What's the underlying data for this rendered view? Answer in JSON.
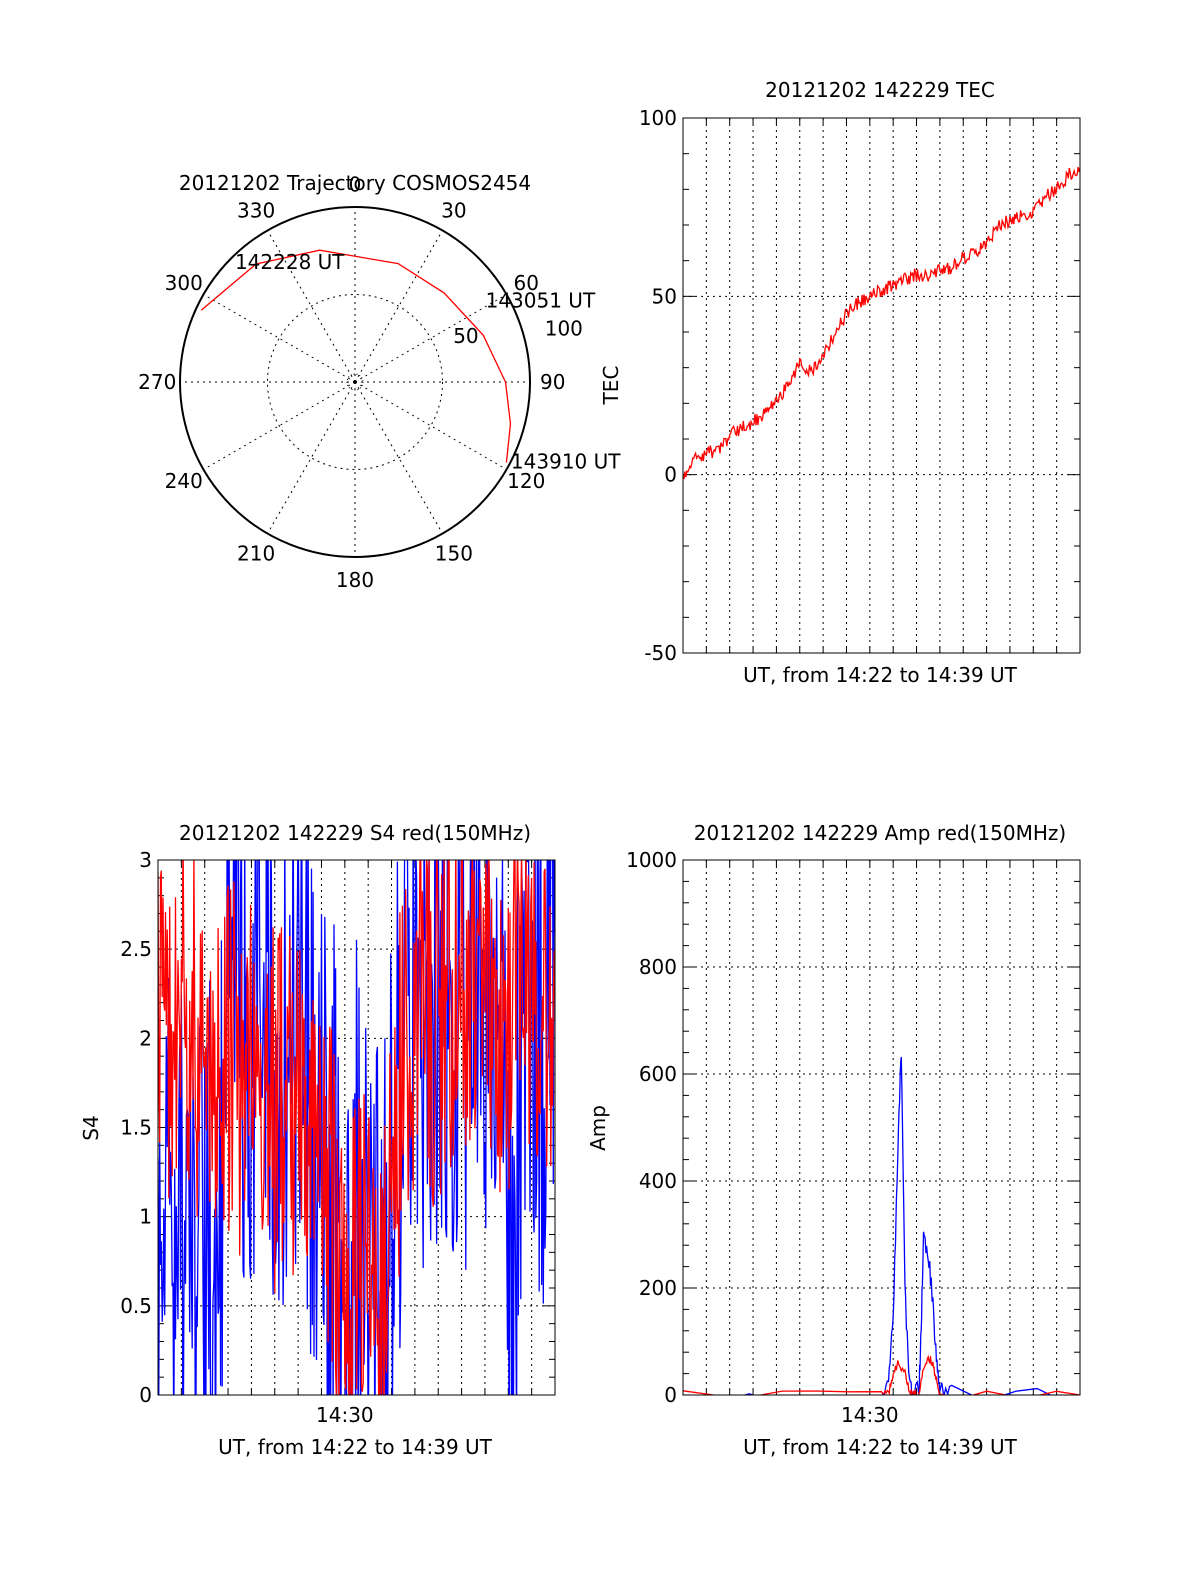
{
  "chart_data": [
    {
      "type": "polar",
      "title": "20121202 Trajectory COSMOS2454",
      "azimuth_ticks": [
        "0",
        "30",
        "60",
        "90",
        "120",
        "150",
        "180",
        "210",
        "240",
        "270",
        "300",
        "330"
      ],
      "radial_ticks": [
        "50",
        "100"
      ],
      "radial_max": 100,
      "grid": true,
      "series": [
        {
          "color": "#ff0000",
          "points": [
            {
              "az": 295,
              "el_r": 97
            },
            {
              "az": 320,
              "el_r": 88
            },
            {
              "az": 345,
              "el_r": 78
            },
            {
              "az": 20,
              "el_r": 72
            },
            {
              "az": 45,
              "el_r": 72
            },
            {
              "az": 70,
              "el_r": 78
            },
            {
              "az": 90,
              "el_r": 86
            },
            {
              "az": 105,
              "el_r": 92
            },
            {
              "az": 118,
              "el_r": 98
            }
          ]
        }
      ],
      "annotations": [
        {
          "text": "142228 UT",
          "az": 315,
          "el_r": 97
        },
        {
          "text": "143051 UT",
          "az": 58,
          "el_r": 88
        },
        {
          "text": "143910 UT",
          "az": 117,
          "el_r": 100
        }
      ]
    },
    {
      "type": "line",
      "title": "20121202 142229 TEC",
      "xlabel": "UT, from 14:22 to 14:39 UT",
      "ylabel": "TEC",
      "xlim": [
        0,
        17
      ],
      "ylim": [
        -50,
        100
      ],
      "y_ticks": [
        "-50",
        "0",
        "50",
        "100"
      ],
      "grid": true,
      "series": [
        {
          "color": "#ff0000",
          "x": [
            0,
            0.5,
            1,
            1.5,
            2,
            2.5,
            3,
            3.5,
            4,
            4.5,
            5,
            5.5,
            6,
            6.5,
            7,
            7.5,
            8,
            8.5,
            9,
            9.5,
            10,
            10.5,
            11,
            11.5,
            12,
            12.5,
            13,
            13.5,
            14,
            14.5,
            15,
            15.5,
            16,
            16.5,
            17
          ],
          "y": [
            0,
            4,
            6,
            7,
            11,
            13,
            15,
            17,
            20,
            26,
            31,
            29,
            34,
            39,
            45,
            48,
            50,
            52,
            53,
            55,
            56,
            56,
            57,
            58,
            61,
            62,
            65,
            70,
            71,
            73,
            74,
            78,
            80,
            84,
            86
          ]
        }
      ]
    },
    {
      "type": "line",
      "title": "20121202 142229 S4 red(150MHz)",
      "xlabel": "UT, from 14:22 to 14:39 UT",
      "ylabel": "S4",
      "xlim": [
        0,
        17
      ],
      "ylim": [
        0,
        3
      ],
      "x_tick_labels": [
        {
          "x": 8,
          "label": "14:30"
        }
      ],
      "y_ticks": [
        "0",
        "0.5",
        "1",
        "1.5",
        "2",
        "2.5",
        "3"
      ],
      "grid": true,
      "series": [
        {
          "color": "#0000ff",
          "x": [
            0,
            0.5,
            1,
            1.5,
            2,
            2.5,
            3,
            3.5,
            4,
            4.5,
            5,
            5.5,
            6,
            6.5,
            7,
            7.5,
            8,
            8.5,
            9,
            9.5,
            10,
            10.5,
            11,
            11.5,
            12,
            12.5,
            13,
            13.5,
            14,
            14.5,
            15,
            15.5,
            16,
            16.5,
            17
          ],
          "y": [
            1.3,
            0.8,
            0.75,
            0.85,
            0.8,
            1.0,
            2.2,
            2.3,
            2.0,
            2.6,
            2.0,
            1.7,
            2.2,
            1.6,
            1.4,
            1.3,
            0.15,
            1.0,
            1.1,
            0.12,
            1.2,
            2.1,
            2.2,
            2.3,
            2.0,
            2.4,
            2.3,
            2.2,
            2.5,
            2.4,
            0.4,
            1.8,
            2.4,
            2.1,
            2.6
          ]
        },
        {
          "color": "#ff0000",
          "x": [
            0,
            0.5,
            1,
            1.5,
            2,
            2.5,
            3,
            3.5,
            4,
            4.5,
            5,
            5.5,
            6,
            6.5,
            7,
            7.5,
            8,
            8.5,
            9,
            9.5,
            10,
            10.5,
            11,
            11.5,
            12,
            12.5,
            13,
            13.5,
            14,
            14.5,
            15,
            15.5,
            16,
            16.5,
            17
          ],
          "y": [
            1.9,
            2.1,
            2.3,
            2.0,
            2.1,
            2.0,
            1.9,
            1.8,
            1.9,
            1.7,
            1.6,
            1.7,
            1.5,
            1.5,
            1.4,
            1.0,
            0.2,
            1.0,
            1.1,
            0.15,
            1.2,
            1.9,
            2.2,
            2.1,
            2.0,
            2.2,
            2.3,
            2.1,
            2.2,
            2.2,
            2.0,
            2.1,
            2.4,
            2.3,
            2.1
          ]
        }
      ]
    },
    {
      "type": "line",
      "title": "20121202 142229 Amp red(150MHz)",
      "xlabel": "UT, from 14:22 to 14:39 UT",
      "ylabel": "Amp",
      "xlim": [
        0,
        17
      ],
      "ylim": [
        0,
        1000
      ],
      "x_tick_labels": [
        {
          "x": 8,
          "label": "14:30"
        }
      ],
      "y_ticks": [
        "0",
        "200",
        "400",
        "600",
        "800",
        "1000"
      ],
      "grid": true,
      "series": [
        {
          "color": "#0000ff",
          "x": [
            0,
            8.5,
            8.8,
            9.0,
            9.2,
            9.35,
            9.5,
            9.7,
            9.9,
            10.1,
            10.2,
            10.3,
            10.5,
            10.7,
            10.85,
            11.0,
            11.5,
            17
          ],
          "y": [
            0,
            0,
            10,
            150,
            450,
            650,
            200,
            20,
            5,
            5,
            120,
            310,
            260,
            180,
            60,
            5,
            0,
            0
          ]
        },
        {
          "color": "#ff0000",
          "x": [
            0,
            8.5,
            8.8,
            9.0,
            9.2,
            9.5,
            9.7,
            9.9,
            10.1,
            10.3,
            10.5,
            10.7,
            10.85,
            11.0,
            17
          ],
          "y": [
            0,
            0,
            5,
            40,
            60,
            40,
            10,
            2,
            2,
            50,
            70,
            60,
            30,
            2,
            0
          ]
        }
      ]
    }
  ]
}
